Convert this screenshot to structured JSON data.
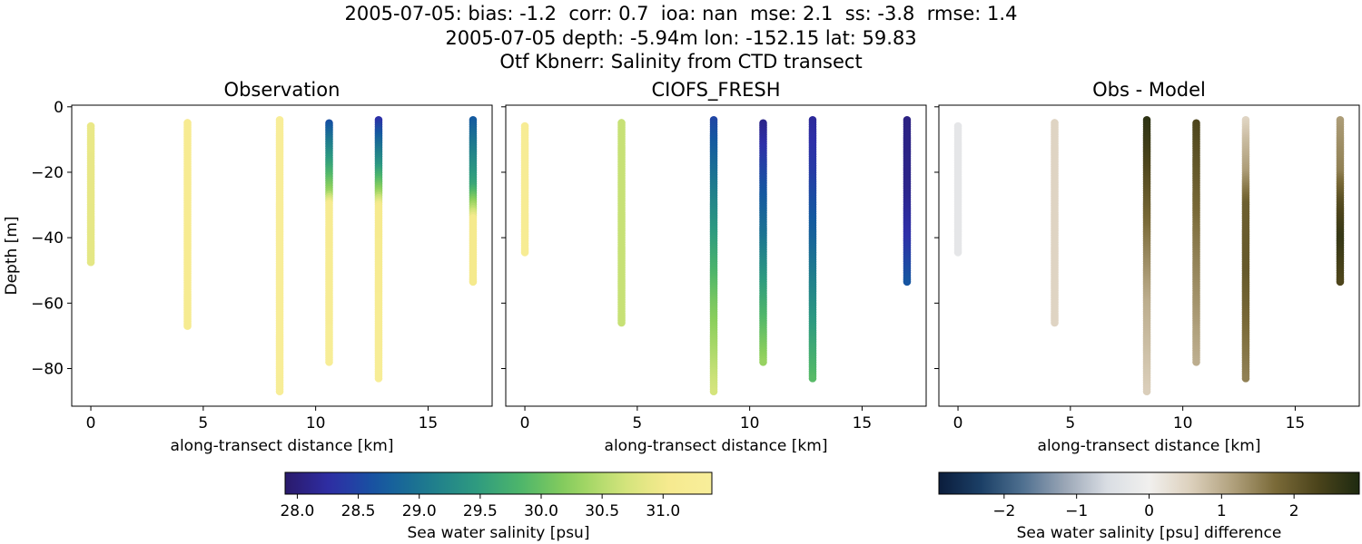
{
  "titles": {
    "line1": "2005-07-05: bias: -1.2  corr: 0.7  ioa: nan  mse: 2.1  ss: -3.8  rmse: 1.4",
    "line2": "2005-07-05 depth: -5.94m lon: -152.15 lat: 59.83",
    "line3": "Otf Kbnerr: Salinity from CTD transect"
  },
  "chart_data": [
    {
      "type": "scatter",
      "title": "Observation",
      "xlabel": "along-transect distance [km]",
      "ylabel": "Depth [m]",
      "xlim": [
        -0.85,
        17.85
      ],
      "ylim": [
        -91.5,
        0.5
      ],
      "xticks": [
        0,
        5,
        10,
        15
      ],
      "yticks": [
        0,
        -20,
        -40,
        -60,
        -80
      ],
      "colormap": "salinity",
      "clim": [
        27.9,
        31.4
      ],
      "profiles": [
        {
          "x": 0.0,
          "top": -5.9,
          "bottom": -47.5,
          "stops": [
            [
              -5.9,
              30.9
            ],
            [
              -47.5,
              30.85
            ]
          ]
        },
        {
          "x": 4.3,
          "top": -4.9,
          "bottom": -67.0,
          "stops": [
            [
              -4.9,
              31.15
            ],
            [
              -67.0,
              31.1
            ]
          ]
        },
        {
          "x": 8.4,
          "top": -4.0,
          "bottom": -87.0,
          "stops": [
            [
              -4.0,
              31.35
            ],
            [
              -87.0,
              31.3
            ]
          ]
        },
        {
          "x": 10.6,
          "top": -5.0,
          "bottom": -78.0,
          "stops": [
            [
              -5.0,
              28.6
            ],
            [
              -10,
              29.0
            ],
            [
              -18,
              29.6
            ],
            [
              -26,
              30.3
            ],
            [
              -30,
              31.1
            ],
            [
              -78.0,
              31.3
            ]
          ]
        },
        {
          "x": 12.8,
          "top": -4.0,
          "bottom": -83.0,
          "stops": [
            [
              -4.0,
              28.3
            ],
            [
              -10,
              28.8
            ],
            [
              -18,
              29.4
            ],
            [
              -26,
              30.3
            ],
            [
              -30,
              31.0
            ],
            [
              -83.0,
              31.3
            ]
          ]
        },
        {
          "x": 17.0,
          "top": -4.0,
          "bottom": -53.5,
          "stops": [
            [
              -4.0,
              28.7
            ],
            [
              -15,
              29.2
            ],
            [
              -24,
              29.6
            ],
            [
              -31,
              30.5
            ],
            [
              -34,
              31.0
            ],
            [
              -53.5,
              31.0
            ]
          ]
        }
      ]
    },
    {
      "type": "scatter",
      "title": "CIOFS_FRESH",
      "xlabel": "along-transect distance [km]",
      "ylabel": "",
      "xlim": [
        -0.85,
        17.85
      ],
      "ylim": [
        -91.5,
        0.5
      ],
      "xticks": [
        0,
        5,
        10,
        15
      ],
      "yticks": [
        0,
        -20,
        -40,
        -60,
        -80
      ],
      "colormap": "salinity",
      "clim": [
        27.9,
        31.4
      ],
      "profiles": [
        {
          "x": 0.0,
          "top": -5.9,
          "bottom": -44.5,
          "stops": [
            [
              -5.9,
              31.25
            ],
            [
              -44.5,
              31.2
            ]
          ]
        },
        {
          "x": 4.3,
          "top": -4.9,
          "bottom": -66.0,
          "stops": [
            [
              -4.9,
              30.6
            ],
            [
              -66.0,
              30.6
            ]
          ]
        },
        {
          "x": 8.4,
          "top": -4.0,
          "bottom": -87.0,
          "stops": [
            [
              -4.0,
              28.5
            ],
            [
              -15,
              28.8
            ],
            [
              -40,
              29.5
            ],
            [
              -60,
              30.1
            ],
            [
              -87.0,
              30.7
            ]
          ]
        },
        {
          "x": 10.6,
          "top": -5.0,
          "bottom": -78.0,
          "stops": [
            [
              -5.0,
              28.1
            ],
            [
              -20,
              28.5
            ],
            [
              -40,
              29.0
            ],
            [
              -60,
              29.7
            ],
            [
              -78.0,
              30.3
            ]
          ]
        },
        {
          "x": 12.8,
          "top": -4.0,
          "bottom": -83.0,
          "stops": [
            [
              -4.0,
              28.2
            ],
            [
              -20,
              28.4
            ],
            [
              -40,
              28.8
            ],
            [
              -60,
              29.3
            ],
            [
              -83.0,
              29.9
            ]
          ]
        },
        {
          "x": 17.0,
          "top": -4.0,
          "bottom": -53.5,
          "stops": [
            [
              -4.0,
              28.05
            ],
            [
              -25,
              28.1
            ],
            [
              -40,
              28.3
            ],
            [
              -53.5,
              28.65
            ]
          ]
        }
      ]
    },
    {
      "type": "scatter",
      "title": "Obs - Model",
      "xlabel": "along-transect distance [km]",
      "ylabel": "",
      "xlim": [
        -0.85,
        17.85
      ],
      "ylim": [
        -91.5,
        0.5
      ],
      "xticks": [
        0,
        5,
        10,
        15
      ],
      "yticks": [
        0,
        -20,
        -40,
        -60,
        -80
      ],
      "colormap": "difference",
      "clim": [
        -2.9,
        2.9
      ],
      "profiles": [
        {
          "x": 0.0,
          "top": -5.9,
          "bottom": -44.5,
          "stops": [
            [
              -5.9,
              -0.3
            ],
            [
              -44.5,
              -0.3
            ]
          ]
        },
        {
          "x": 4.3,
          "top": -4.9,
          "bottom": -66.0,
          "stops": [
            [
              -4.9,
              0.5
            ],
            [
              -66.0,
              0.5
            ]
          ]
        },
        {
          "x": 8.4,
          "top": -4.0,
          "bottom": -87.0,
          "stops": [
            [
              -4.0,
              2.7
            ],
            [
              -15,
              2.4
            ],
            [
              -40,
              1.6
            ],
            [
              -60,
              1.0
            ],
            [
              -87.0,
              0.6
            ]
          ]
        },
        {
          "x": 10.6,
          "top": -5.0,
          "bottom": -78.0,
          "stops": [
            [
              -5.0,
              2.3
            ],
            [
              -20,
              2.0
            ],
            [
              -40,
              1.6
            ],
            [
              -60,
              1.3
            ],
            [
              -78.0,
              1.0
            ]
          ]
        },
        {
          "x": 12.8,
          "top": -4.0,
          "bottom": -83.0,
          "stops": [
            [
              -4.0,
              0.5
            ],
            [
              -10,
              0.8
            ],
            [
              -20,
              1.2
            ],
            [
              -30,
              1.9
            ],
            [
              -50,
              2.0
            ],
            [
              -83.0,
              1.5
            ]
          ]
        },
        {
          "x": 17.0,
          "top": -4.0,
          "bottom": -53.5,
          "stops": [
            [
              -4.0,
              1.2
            ],
            [
              -20,
              1.5
            ],
            [
              -30,
              2.2
            ],
            [
              -40,
              2.6
            ],
            [
              -53.5,
              2.3
            ]
          ]
        }
      ]
    }
  ],
  "colorbars": [
    {
      "label": "Sea water salinity [psu]",
      "colormap": "salinity",
      "range": [
        27.9,
        31.4
      ],
      "ticks": [
        28.0,
        28.5,
        29.0,
        29.5,
        30.0,
        30.5,
        31.0
      ],
      "tick_labels": [
        "28.0",
        "28.5",
        "29.0",
        "29.5",
        "30.0",
        "30.5",
        "31.0"
      ]
    },
    {
      "label": "Sea water salinity [psu] difference",
      "colormap": "difference",
      "range": [
        -2.9,
        2.9
      ],
      "ticks": [
        -2,
        -1,
        0,
        1,
        2
      ],
      "tick_labels": [
        "−2",
        "−1",
        "0",
        "1",
        "2"
      ]
    }
  ],
  "colors": {
    "salinity": [
      "#2a1a6b",
      "#2e2fa8",
      "#1458a0",
      "#1e7a8e",
      "#2d9a80",
      "#4fb66a",
      "#8ccf5c",
      "#cbe278",
      "#f6ea8e",
      "#f8ee9a"
    ],
    "difference": [
      "#0b1d3c",
      "#1b3f66",
      "#4f7090",
      "#9aa6b6",
      "#d9dde3",
      "#f1f0ee",
      "#dcd0bc",
      "#b0a07c",
      "#7a6a38",
      "#4c441b",
      "#1e2a10"
    ]
  }
}
